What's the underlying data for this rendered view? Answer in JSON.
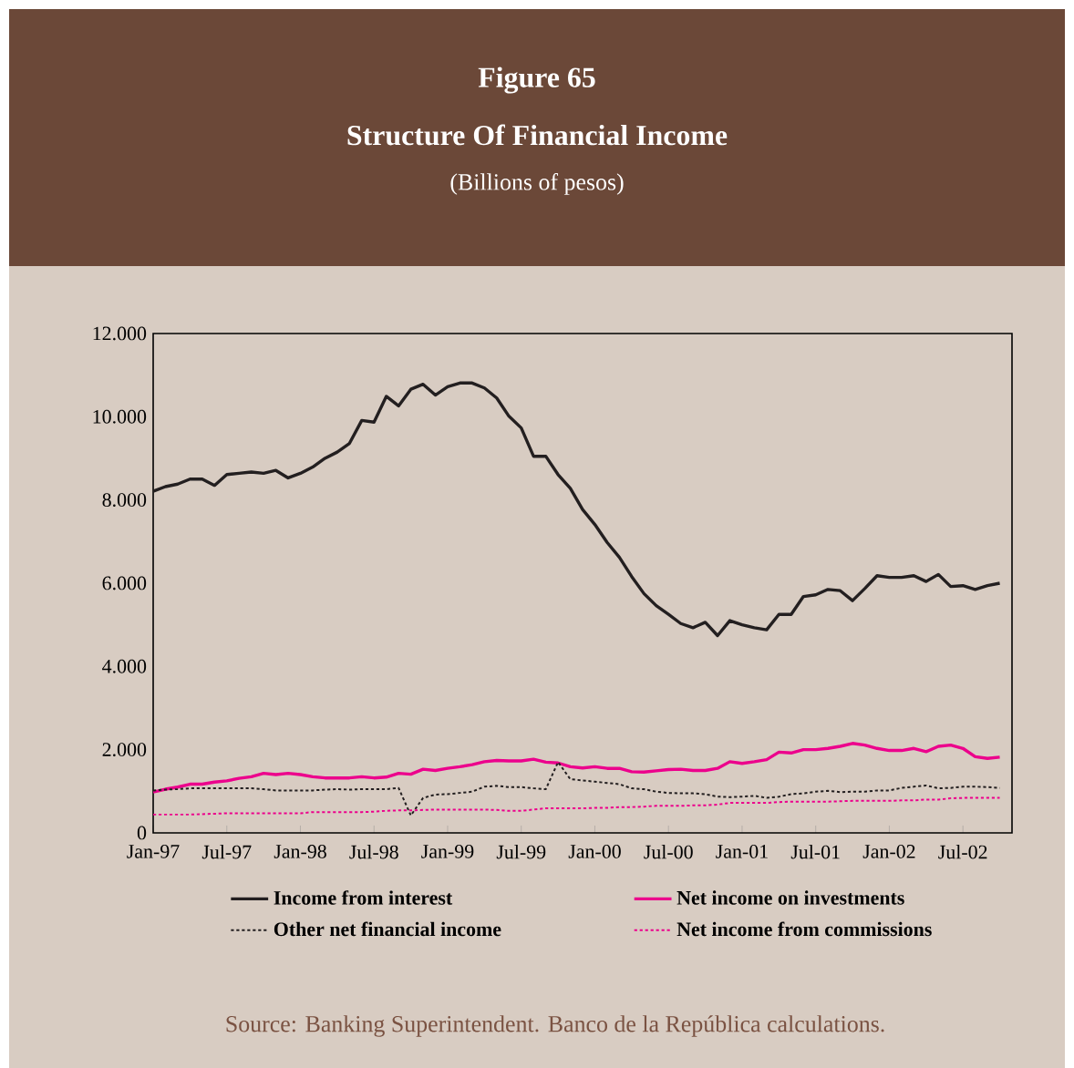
{
  "chart_data": {
    "type": "line",
    "title": "Figure 65",
    "subtitle": "Structure Of Financial Income",
    "x": [
      "1997-01",
      "1997-02",
      "1997-03",
      "1997-04",
      "1997-05",
      "1997-06",
      "1997-07",
      "1997-08",
      "1997-09",
      "1997-10",
      "1997-11",
      "1997-12",
      "1998-01",
      "1998-02",
      "1998-03",
      "1998-04",
      "1998-05",
      "1998-06",
      "1998-07",
      "1998-08",
      "1998-09",
      "1998-10",
      "1998-11",
      "1998-12",
      "1999-01",
      "1999-02",
      "1999-03",
      "1999-04",
      "1999-05",
      "1999-06",
      "1999-07",
      "1999-08",
      "1999-09",
      "1999-10",
      "1999-11",
      "1999-12",
      "2000-01",
      "2000-02",
      "2000-03",
      "2000-04",
      "2000-05",
      "2000-06",
      "2000-07",
      "2000-08",
      "2000-09",
      "2000-10",
      "2000-11",
      "2000-12",
      "2001-01",
      "2001-02",
      "2001-03",
      "2001-04",
      "2001-05",
      "2001-06",
      "2001-07",
      "2001-08",
      "2001-09",
      "2001-10",
      "2001-11",
      "2001-12",
      "2002-01",
      "2002-02",
      "2002-03",
      "2002-04",
      "2002-05",
      "2002-06",
      "2002-07",
      "2002-08",
      "2002-09",
      "2002-10"
    ],
    "series": [
      {
        "name": "Income from interest",
        "color": "#231f20",
        "line_style": "solid",
        "values": [
          8210,
          8320,
          8380,
          8500,
          8500,
          8350,
          8610,
          8640,
          8670,
          8640,
          8710,
          8530,
          8640,
          8790,
          9000,
          9150,
          9360,
          9910,
          9870,
          10490,
          10260,
          10660,
          10780,
          10520,
          10720,
          10810,
          10810,
          10690,
          10450,
          10010,
          9730,
          9050,
          9050,
          8610,
          8280,
          7770,
          7410,
          6980,
          6620,
          6160,
          5750,
          5460,
          5250,
          5030,
          4930,
          5060,
          4740,
          5100,
          5000,
          4930,
          4880,
          5250,
          5250,
          5680,
          5720,
          5850,
          5820,
          5580,
          5870,
          6180,
          6140,
          6140,
          6180,
          6040,
          6210,
          5920,
          5940,
          5850,
          5940,
          6000
        ]
      },
      {
        "name": "Net income on investments",
        "color": "#ec008c",
        "line_style": "solid",
        "values": [
          980,
          1050,
          1100,
          1170,
          1170,
          1220,
          1250,
          1310,
          1350,
          1430,
          1400,
          1430,
          1400,
          1350,
          1320,
          1320,
          1320,
          1350,
          1320,
          1340,
          1430,
          1410,
          1530,
          1500,
          1550,
          1590,
          1640,
          1710,
          1740,
          1730,
          1730,
          1770,
          1700,
          1680,
          1590,
          1560,
          1590,
          1550,
          1550,
          1470,
          1460,
          1490,
          1520,
          1530,
          1500,
          1500,
          1550,
          1710,
          1670,
          1710,
          1760,
          1940,
          1920,
          2000,
          2000,
          2030,
          2080,
          2150,
          2110,
          2030,
          1980,
          1980,
          2030,
          1950,
          2080,
          2110,
          2030,
          1830,
          1790,
          1820
        ]
      },
      {
        "name": "Other net financial income",
        "color": "#231f20",
        "line_style": "dotted",
        "values": [
          1020,
          1040,
          1050,
          1070,
          1070,
          1070,
          1070,
          1070,
          1070,
          1050,
          1020,
          1020,
          1020,
          1020,
          1040,
          1050,
          1040,
          1050,
          1050,
          1050,
          1080,
          420,
          840,
          920,
          930,
          960,
          990,
          1110,
          1130,
          1100,
          1100,
          1070,
          1050,
          1700,
          1290,
          1260,
          1230,
          1200,
          1170,
          1070,
          1050,
          990,
          960,
          950,
          950,
          930,
          870,
          860,
          870,
          890,
          840,
          870,
          930,
          950,
          990,
          1010,
          980,
          990,
          990,
          1020,
          1020,
          1080,
          1110,
          1140,
          1070,
          1080,
          1110,
          1110,
          1100,
          1080
        ]
      },
      {
        "name": "Net income from commissions",
        "color": "#ec008c",
        "line_style": "dotted",
        "values": [
          440,
          440,
          440,
          440,
          450,
          460,
          470,
          470,
          470,
          470,
          470,
          470,
          470,
          500,
          500,
          500,
          500,
          500,
          510,
          530,
          540,
          540,
          550,
          560,
          560,
          560,
          560,
          560,
          550,
          530,
          530,
          560,
          590,
          590,
          590,
          590,
          600,
          600,
          620,
          620,
          630,
          650,
          650,
          650,
          660,
          660,
          680,
          720,
          720,
          720,
          720,
          740,
          750,
          750,
          750,
          750,
          760,
          770,
          770,
          770,
          770,
          780,
          780,
          800,
          800,
          830,
          840,
          840,
          840,
          840
        ]
      }
    ],
    "xlim": [
      "1997-01",
      "2002-11"
    ],
    "xticks": [
      {
        "value": "1997-01",
        "label": "Jan-97"
      },
      {
        "value": "1997-07",
        "label": "Jul-97"
      },
      {
        "value": "1998-01",
        "label": "Jan-98"
      },
      {
        "value": "1998-07",
        "label": "Jul-98"
      },
      {
        "value": "1999-01",
        "label": "Jan-99"
      },
      {
        "value": "1999-07",
        "label": "Jul-99"
      },
      {
        "value": "2000-01",
        "label": "Jan-00"
      },
      {
        "value": "2000-07",
        "label": "Jul-00"
      },
      {
        "value": "2001-01",
        "label": "Jan-01"
      },
      {
        "value": "2001-07",
        "label": "Jul-01"
      },
      {
        "value": "2002-01",
        "label": "Jan-02"
      },
      {
        "value": "2002-07",
        "label": "Jul-02"
      }
    ],
    "ylim": [
      0,
      12000
    ],
    "yticks": [
      0,
      {
        "value": 2000,
        "label": "2.000"
      },
      {
        "value": 4000,
        "label": "4.000"
      },
      {
        "value": 6000,
        "label": "6.000"
      },
      {
        "value": 8000,
        "label": "8.000"
      },
      {
        "value": 10000,
        "label": "10.000"
      },
      {
        "value": 12000,
        "label": "12.000"
      }
    ],
    "legend": "bottom",
    "annotations": [
      "(Billions of pesos)",
      "Source: Banking Superintendent. Banco de la República calculations."
    ]
  }
}
